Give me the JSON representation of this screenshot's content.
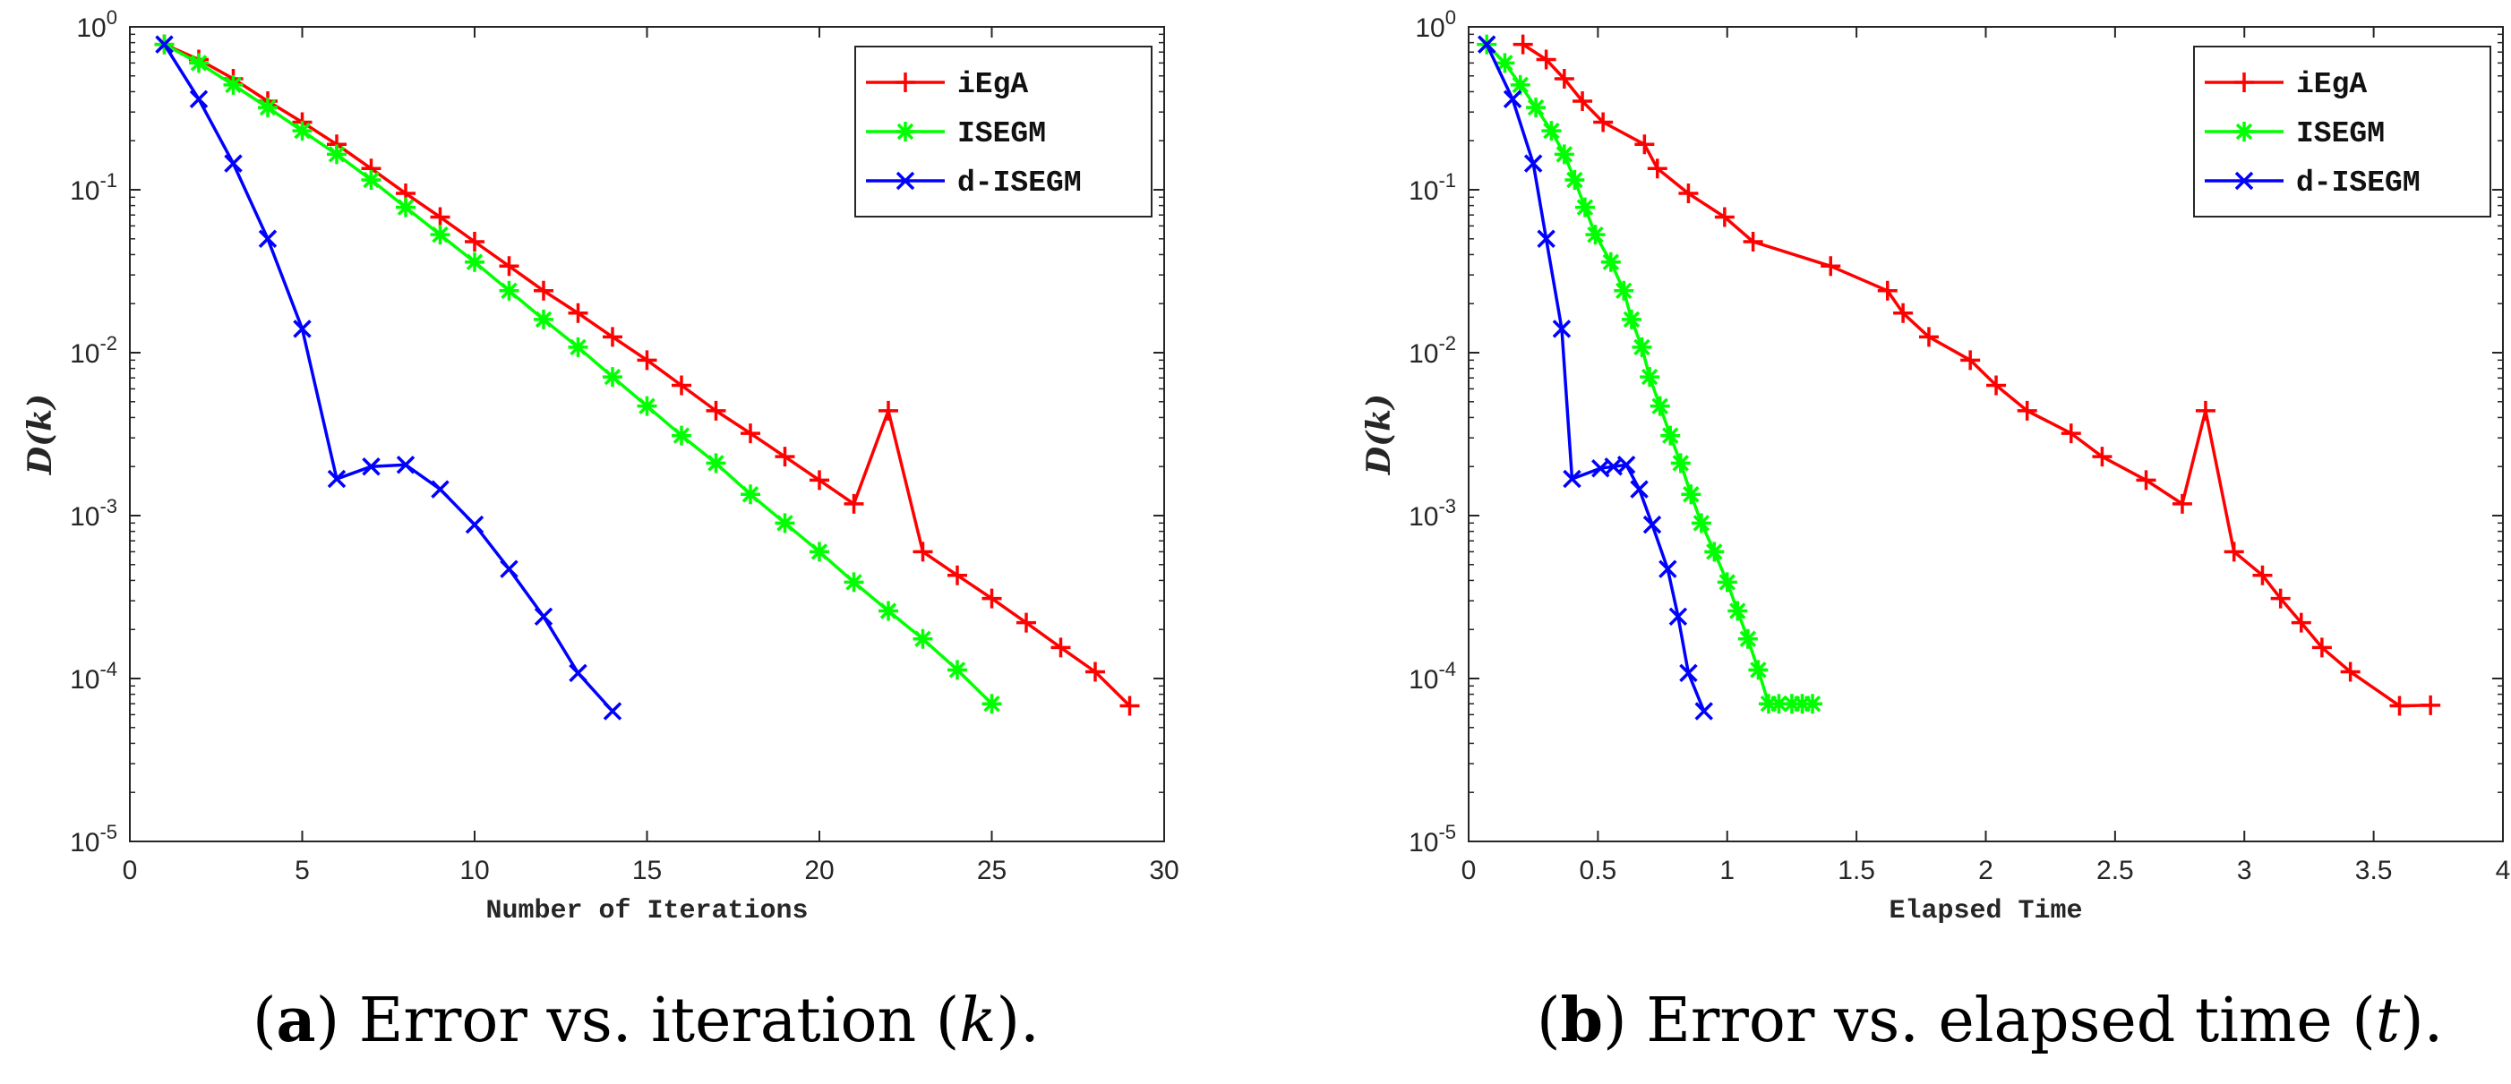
{
  "chart_data": [
    {
      "type": "line",
      "y_scale": "log",
      "xlabel": "Number of Iterations",
      "ylabel": "D(k)",
      "xlim": [
        0,
        30
      ],
      "ylim": [
        1e-05,
        1
      ],
      "x_ticks": [
        0,
        5,
        10,
        15,
        20,
        25,
        30
      ],
      "y_ticks": [
        1e-05,
        0.0001,
        0.001,
        0.01,
        0.1,
        1
      ],
      "y_tick_labels": [
        {
          "base": "10",
          "exp": "-5"
        },
        {
          "base": "10",
          "exp": "-4"
        },
        {
          "base": "10",
          "exp": "-3"
        },
        {
          "base": "10",
          "exp": "-2"
        },
        {
          "base": "10",
          "exp": "-1"
        },
        {
          "base": "10",
          "exp": "0"
        }
      ],
      "legend_position": "top-right",
      "caption": {
        "letter": "a",
        "before": "Error vs. iteration (",
        "var": "k",
        "after": ")."
      },
      "series": [
        {
          "name": "iEgA",
          "color": "#ff0000",
          "marker": "plus",
          "x": [
            1,
            2,
            3,
            4,
            5,
            6,
            7,
            8,
            9,
            10,
            11,
            12,
            13,
            14,
            15,
            16,
            17,
            18,
            19,
            20,
            21,
            22,
            23,
            24,
            25,
            26,
            27,
            28,
            29
          ],
          "y": [
            0.78,
            0.63,
            0.48,
            0.35,
            0.26,
            0.19,
            0.135,
            0.095,
            0.068,
            0.048,
            0.034,
            0.024,
            0.0175,
            0.0125,
            0.009,
            0.0063,
            0.0044,
            0.0032,
            0.0023,
            0.00165,
            0.00118,
            0.0044,
            0.0006,
            0.00043,
            0.00031,
            0.00022,
            0.000155,
            0.00011,
            6.8e-05
          ]
        },
        {
          "name": "ISEGM",
          "color": "#00ff00",
          "marker": "asterisk",
          "x": [
            1,
            2,
            3,
            4,
            5,
            6,
            7,
            8,
            9,
            10,
            11,
            12,
            13,
            14,
            15,
            16,
            17,
            18,
            19,
            20,
            21,
            22,
            23,
            24,
            25
          ],
          "y": [
            0.78,
            0.6,
            0.44,
            0.32,
            0.23,
            0.165,
            0.115,
            0.078,
            0.053,
            0.036,
            0.024,
            0.016,
            0.0108,
            0.0071,
            0.0047,
            0.0031,
            0.0021,
            0.00135,
            0.0009,
            0.0006,
            0.00039,
            0.00026,
            0.000175,
            0.000113,
            7e-05
          ]
        },
        {
          "name": "d-ISEGM",
          "color": "#0000ff",
          "marker": "cross",
          "x": [
            1,
            2,
            3,
            4,
            5,
            6,
            7,
            8,
            9,
            10,
            11,
            12,
            13,
            14
          ],
          "y": [
            0.78,
            0.36,
            0.145,
            0.05,
            0.014,
            0.00168,
            0.002,
            0.00205,
            0.00145,
            0.00088,
            0.00047,
            0.00024,
            0.000108,
            6.3e-05
          ]
        }
      ]
    },
    {
      "type": "line",
      "y_scale": "log",
      "xlabel": "Elapsed Time",
      "ylabel": "D(k)",
      "xlim": [
        0,
        4
      ],
      "ylim": [
        1e-05,
        1
      ],
      "x_ticks": [
        0,
        0.5,
        1,
        1.5,
        2,
        2.5,
        3,
        3.5,
        4
      ],
      "y_ticks": [
        1e-05,
        0.0001,
        0.001,
        0.01,
        0.1,
        1
      ],
      "y_tick_labels": [
        {
          "base": "10",
          "exp": "-5"
        },
        {
          "base": "10",
          "exp": "-4"
        },
        {
          "base": "10",
          "exp": "-3"
        },
        {
          "base": "10",
          "exp": "-2"
        },
        {
          "base": "10",
          "exp": "-1"
        },
        {
          "base": "10",
          "exp": "0"
        }
      ],
      "legend_position": "top-right",
      "caption": {
        "letter": "b",
        "before": "Error vs. elapsed time (",
        "var": "t",
        "after": ")."
      },
      "series": [
        {
          "name": "iEgA",
          "color": "#ff0000",
          "marker": "plus",
          "x": [
            0.21,
            0.3,
            0.37,
            0.44,
            0.52,
            0.68,
            0.73,
            0.85,
            0.99,
            1.1,
            1.4,
            1.62,
            1.68,
            1.78,
            1.94,
            2.04,
            2.16,
            2.33,
            2.45,
            2.62,
            2.76,
            2.85,
            2.96,
            3.07,
            3.14,
            3.22,
            3.3,
            3.41,
            3.6,
            3.72
          ],
          "y": [
            0.78,
            0.63,
            0.48,
            0.35,
            0.26,
            0.19,
            0.135,
            0.095,
            0.068,
            0.048,
            0.034,
            0.024,
            0.0175,
            0.0125,
            0.009,
            0.0063,
            0.0044,
            0.0032,
            0.0023,
            0.00165,
            0.00118,
            0.0044,
            0.0006,
            0.00043,
            0.00031,
            0.00022,
            0.000155,
            0.00011,
            6.8e-05,
            6.85e-05
          ]
        },
        {
          "name": "ISEGM",
          "color": "#00ff00",
          "marker": "asterisk",
          "x": [
            0.07,
            0.14,
            0.2,
            0.26,
            0.32,
            0.37,
            0.41,
            0.45,
            0.49,
            0.55,
            0.6,
            0.63,
            0.67,
            0.7,
            0.74,
            0.78,
            0.82,
            0.86,
            0.9,
            0.95,
            1,
            1.04,
            1.08,
            1.12,
            1.16,
            1.2,
            1.25,
            1.29,
            1.33
          ],
          "y": [
            0.78,
            0.6,
            0.44,
            0.32,
            0.23,
            0.165,
            0.115,
            0.078,
            0.053,
            0.036,
            0.024,
            0.016,
            0.0108,
            0.0071,
            0.0047,
            0.0031,
            0.0021,
            0.00135,
            0.0009,
            0.0006,
            0.00039,
            0.00026,
            0.000175,
            0.000113,
            7e-05,
            7e-05,
            7e-05,
            7e-05,
            7e-05
          ]
        },
        {
          "name": "d-ISEGM",
          "color": "#0000ff",
          "marker": "cross",
          "x": [
            0.07,
            0.17,
            0.25,
            0.3,
            0.36,
            0.4,
            0.51,
            0.56,
            0.61,
            0.66,
            0.71,
            0.77,
            0.81,
            0.85,
            0.91
          ],
          "y": [
            0.78,
            0.36,
            0.145,
            0.05,
            0.014,
            0.00168,
            0.00195,
            0.002,
            0.00205,
            0.00145,
            0.00088,
            0.00047,
            0.00024,
            0.000108,
            6.3e-05
          ]
        }
      ]
    }
  ]
}
